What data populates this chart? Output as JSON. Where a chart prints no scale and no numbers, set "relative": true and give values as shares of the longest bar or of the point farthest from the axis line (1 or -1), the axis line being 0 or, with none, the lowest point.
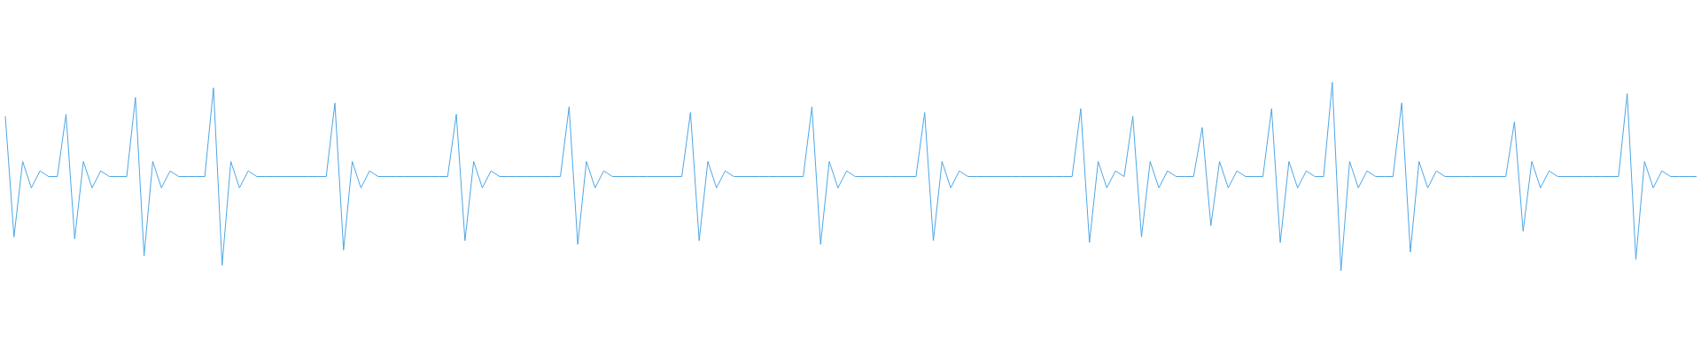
{
  "chart_data": {
    "type": "line",
    "relative": true,
    "categories": [
      null,
      null,
      null,
      null,
      null,
      null,
      null,
      null,
      null,
      null,
      null,
      null,
      null,
      null,
      null,
      null,
      null,
      null,
      null,
      null,
      null,
      null,
      null,
      null,
      null,
      null,
      null,
      null,
      null,
      null,
      null,
      null,
      null,
      null,
      null,
      null,
      null,
      null,
      null,
      null,
      null,
      null,
      null,
      null,
      null,
      null,
      null,
      null,
      null,
      null,
      null,
      null,
      null,
      null,
      null,
      null,
      null,
      null,
      null,
      null,
      null,
      null,
      null,
      null,
      null,
      null,
      null,
      null,
      null,
      null,
      null,
      null,
      null,
      null,
      null,
      null,
      null,
      null,
      null,
      null,
      null,
      null,
      null,
      null,
      null,
      null,
      null,
      null,
      null,
      null,
      null,
      null,
      null,
      null,
      null,
      null,
      null,
      null,
      null,
      null,
      null,
      null,
      null,
      null,
      null,
      null,
      null,
      null,
      null,
      null,
      null,
      null,
      null,
      null,
      null,
      null,
      null,
      null,
      null,
      null,
      null,
      null,
      null,
      null,
      null,
      null,
      null,
      null,
      null,
      null,
      null,
      null,
      null,
      null,
      null,
      null,
      null,
      null,
      null,
      null,
      null,
      null,
      null,
      null,
      null,
      null,
      null,
      null,
      null,
      null,
      null,
      null,
      null,
      null,
      null,
      null,
      null,
      null,
      null,
      null,
      null,
      null,
      null,
      null,
      null,
      null,
      null,
      null,
      null,
      null,
      null,
      null,
      null,
      null,
      null,
      null,
      null,
      null,
      null,
      null,
      null,
      null,
      null,
      null,
      null,
      null,
      null,
      null,
      null,
      null,
      null,
      null,
      null,
      null,
      null,
      null
    ],
    "series": [
      {
        "color": "#4da6e6",
        "values": [
          0.82,
          0.18,
          0.58,
          0.44,
          0.53,
          0.5,
          0.5,
          0.83,
          0.17,
          0.58,
          0.44,
          0.53,
          0.5,
          0.5,
          0.5,
          0.92,
          0.08,
          0.58,
          0.44,
          0.53,
          0.5,
          0.5,
          0.5,
          0.5,
          0.97,
          0.03,
          0.58,
          0.44,
          0.53,
          0.5,
          0.5,
          0.5,
          0.5,
          0.5,
          0.5,
          0.5,
          0.5,
          0.5,
          0.89,
          0.11,
          0.58,
          0.44,
          0.53,
          0.5,
          0.5,
          0.5,
          0.5,
          0.5,
          0.5,
          0.5,
          0.5,
          0.5,
          0.83,
          0.16,
          0.58,
          0.44,
          0.53,
          0.5,
          0.5,
          0.5,
          0.5,
          0.5,
          0.5,
          0.5,
          0.5,
          0.87,
          0.14,
          0.58,
          0.44,
          0.53,
          0.5,
          0.5,
          0.5,
          0.5,
          0.5,
          0.5,
          0.5,
          0.5,
          0.5,
          0.84,
          0.16,
          0.58,
          0.44,
          0.53,
          0.5,
          0.5,
          0.5,
          0.5,
          0.5,
          0.5,
          0.5,
          0.5,
          0.5,
          0.87,
          0.14,
          0.58,
          0.44,
          0.53,
          0.5,
          0.5,
          0.5,
          0.5,
          0.5,
          0.5,
          0.5,
          0.5,
          0.84,
          0.16,
          0.58,
          0.44,
          0.53,
          0.5,
          0.5,
          0.5,
          0.5,
          0.5,
          0.5,
          0.5,
          0.5,
          0.5,
          0.5,
          0.5,
          0.5,
          0.5,
          0.86,
          0.15,
          0.58,
          0.44,
          0.53,
          0.5,
          0.82,
          0.18,
          0.58,
          0.44,
          0.53,
          0.5,
          0.5,
          0.5,
          0.76,
          0.24,
          0.58,
          0.44,
          0.53,
          0.5,
          0.5,
          0.5,
          0.86,
          0.15,
          0.58,
          0.44,
          0.53,
          0.5,
          0.5,
          1,
          0,
          0.58,
          0.44,
          0.53,
          0.5,
          0.5,
          0.5,
          0.89,
          0.1,
          0.58,
          0.44,
          0.53,
          0.5,
          0.5,
          0.5,
          0.5,
          0.5,
          0.5,
          0.5,
          0.5,
          0.79,
          0.21,
          0.58,
          0.44,
          0.53,
          0.5,
          0.5,
          0.5,
          0.5,
          0.5,
          0.5,
          0.5,
          0.5,
          0.94,
          0.06,
          0.58,
          0.44,
          0.53,
          0.5,
          0.5,
          0.5,
          0.5
        ]
      }
    ]
  }
}
